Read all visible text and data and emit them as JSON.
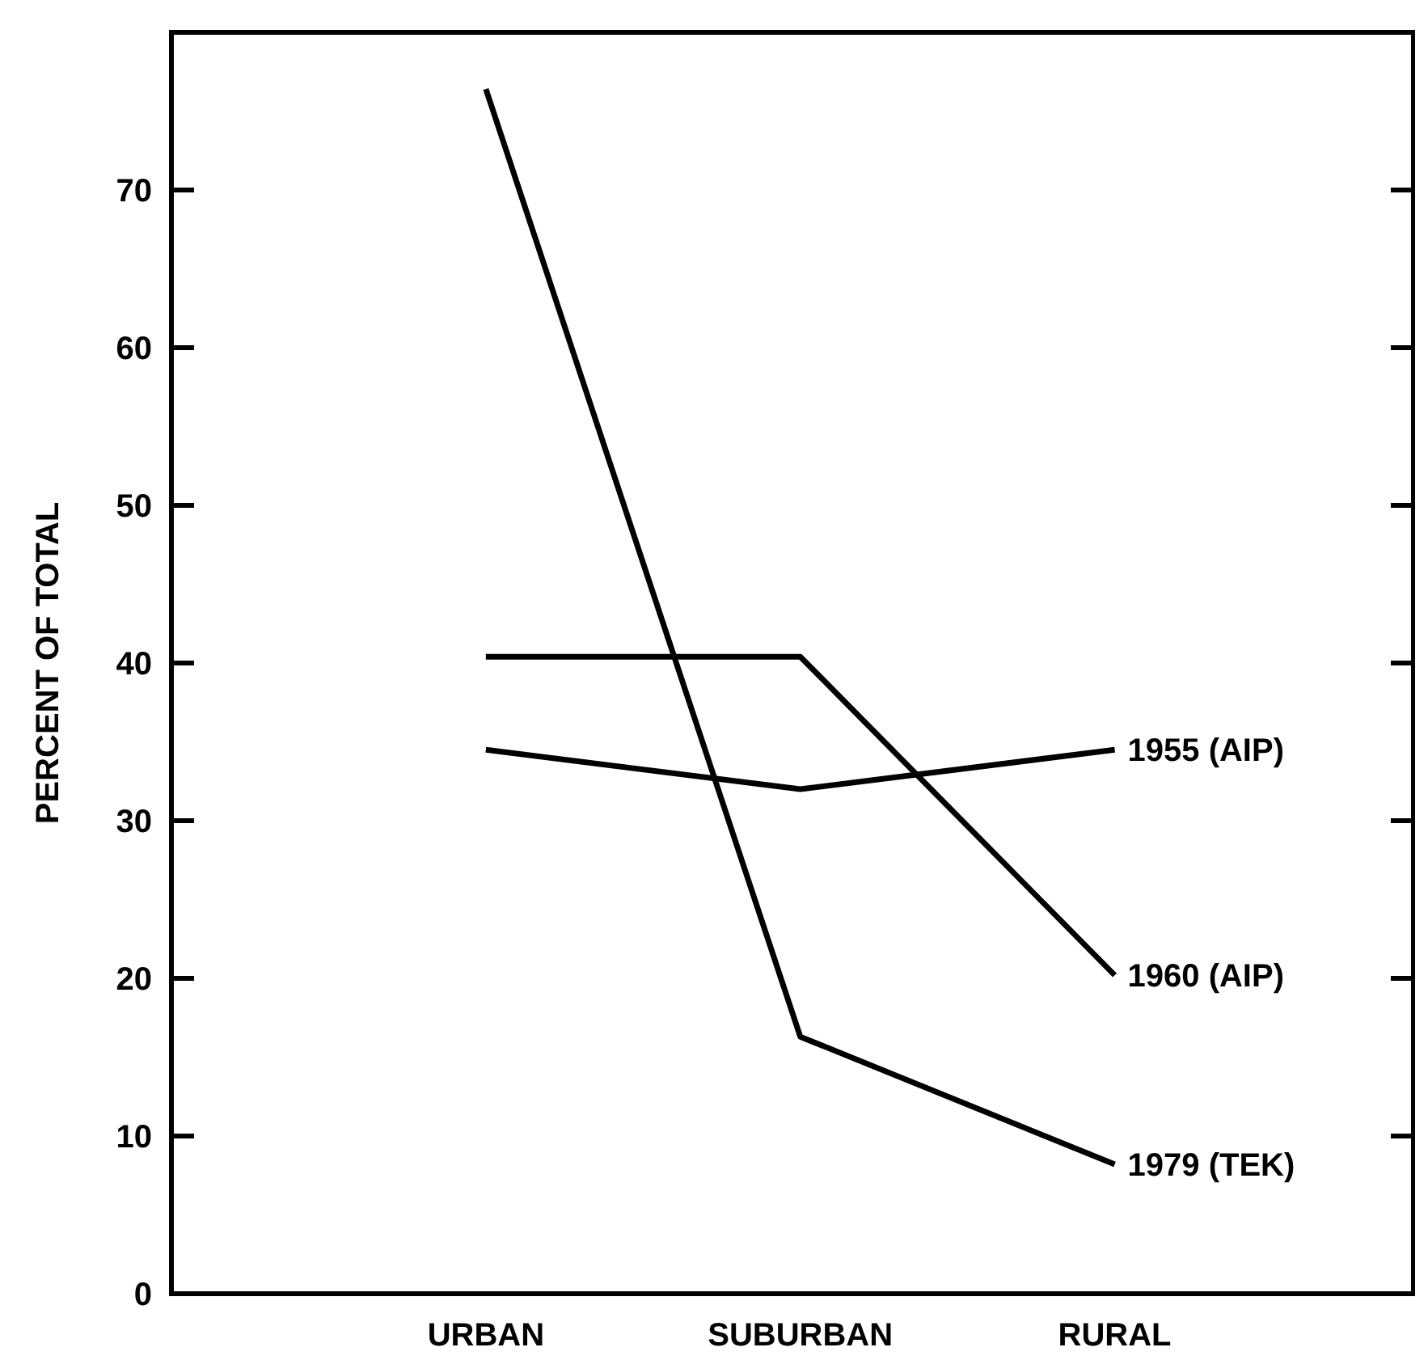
{
  "chart_data": {
    "type": "line",
    "ylabel": "PERCENT OF TOTAL",
    "categories": [
      "URBAN",
      "SUBURBAN",
      "RURAL"
    ],
    "ylim": [
      0,
      80
    ],
    "yticks": [
      0,
      10,
      20,
      30,
      40,
      50,
      60,
      70
    ],
    "marker": "none",
    "line_style": "solid",
    "series": [
      {
        "name": "1955 (AIP)",
        "color": "#000000",
        "values": [
          34.5,
          32,
          34.5
        ]
      },
      {
        "name": "1960 (AIP)",
        "color": "#000000",
        "values": [
          40.4,
          40.4,
          20.2
        ]
      },
      {
        "name": "1979 (TEK)",
        "color": "#000000",
        "values": [
          76.4,
          16.3,
          8.2
        ]
      }
    ]
  }
}
